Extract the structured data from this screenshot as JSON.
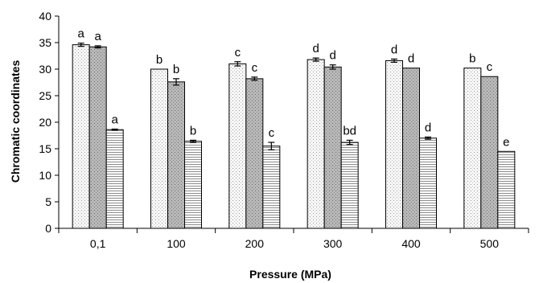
{
  "chart_data": {
    "type": "bar",
    "xlabel": "Pressure (MPa)",
    "ylabel": "Chromatic coordinates",
    "ylim": [
      0,
      40
    ],
    "yticks": [
      0,
      5,
      10,
      15,
      20,
      25,
      30,
      35,
      40
    ],
    "categories": [
      "0,1",
      "100",
      "200",
      "300",
      "400",
      "500"
    ],
    "series": [
      {
        "values": [
          34.6,
          30.0,
          31.0,
          31.8,
          31.6,
          30.2
        ],
        "errors": [
          0.3,
          0.0,
          0.4,
          0.3,
          0.3,
          0.0
        ],
        "labels": [
          "a",
          "b",
          "c",
          "d",
          "d",
          "b"
        ],
        "fill": "#f6f6f6",
        "pattern": "dotted"
      },
      {
        "values": [
          34.2,
          27.6,
          28.2,
          30.4,
          30.2,
          28.6
        ],
        "errors": [
          0.2,
          0.6,
          0.3,
          0.4,
          0.0,
          0.0
        ],
        "labels": [
          "a",
          "b",
          "c",
          "d",
          "d",
          "c"
        ],
        "fill": "#b4b4b4",
        "pattern": "dotted-dark"
      },
      {
        "values": [
          18.6,
          16.4,
          15.5,
          16.2,
          17.0,
          14.5
        ],
        "errors": [
          0.1,
          0.2,
          0.7,
          0.4,
          0.2,
          0.0
        ],
        "labels": [
          "a",
          "b",
          "c",
          "bd",
          "d",
          "e"
        ],
        "fill": "#ffffff",
        "pattern": "horizontal-lines"
      }
    ],
    "grid": false,
    "legend": "none"
  }
}
